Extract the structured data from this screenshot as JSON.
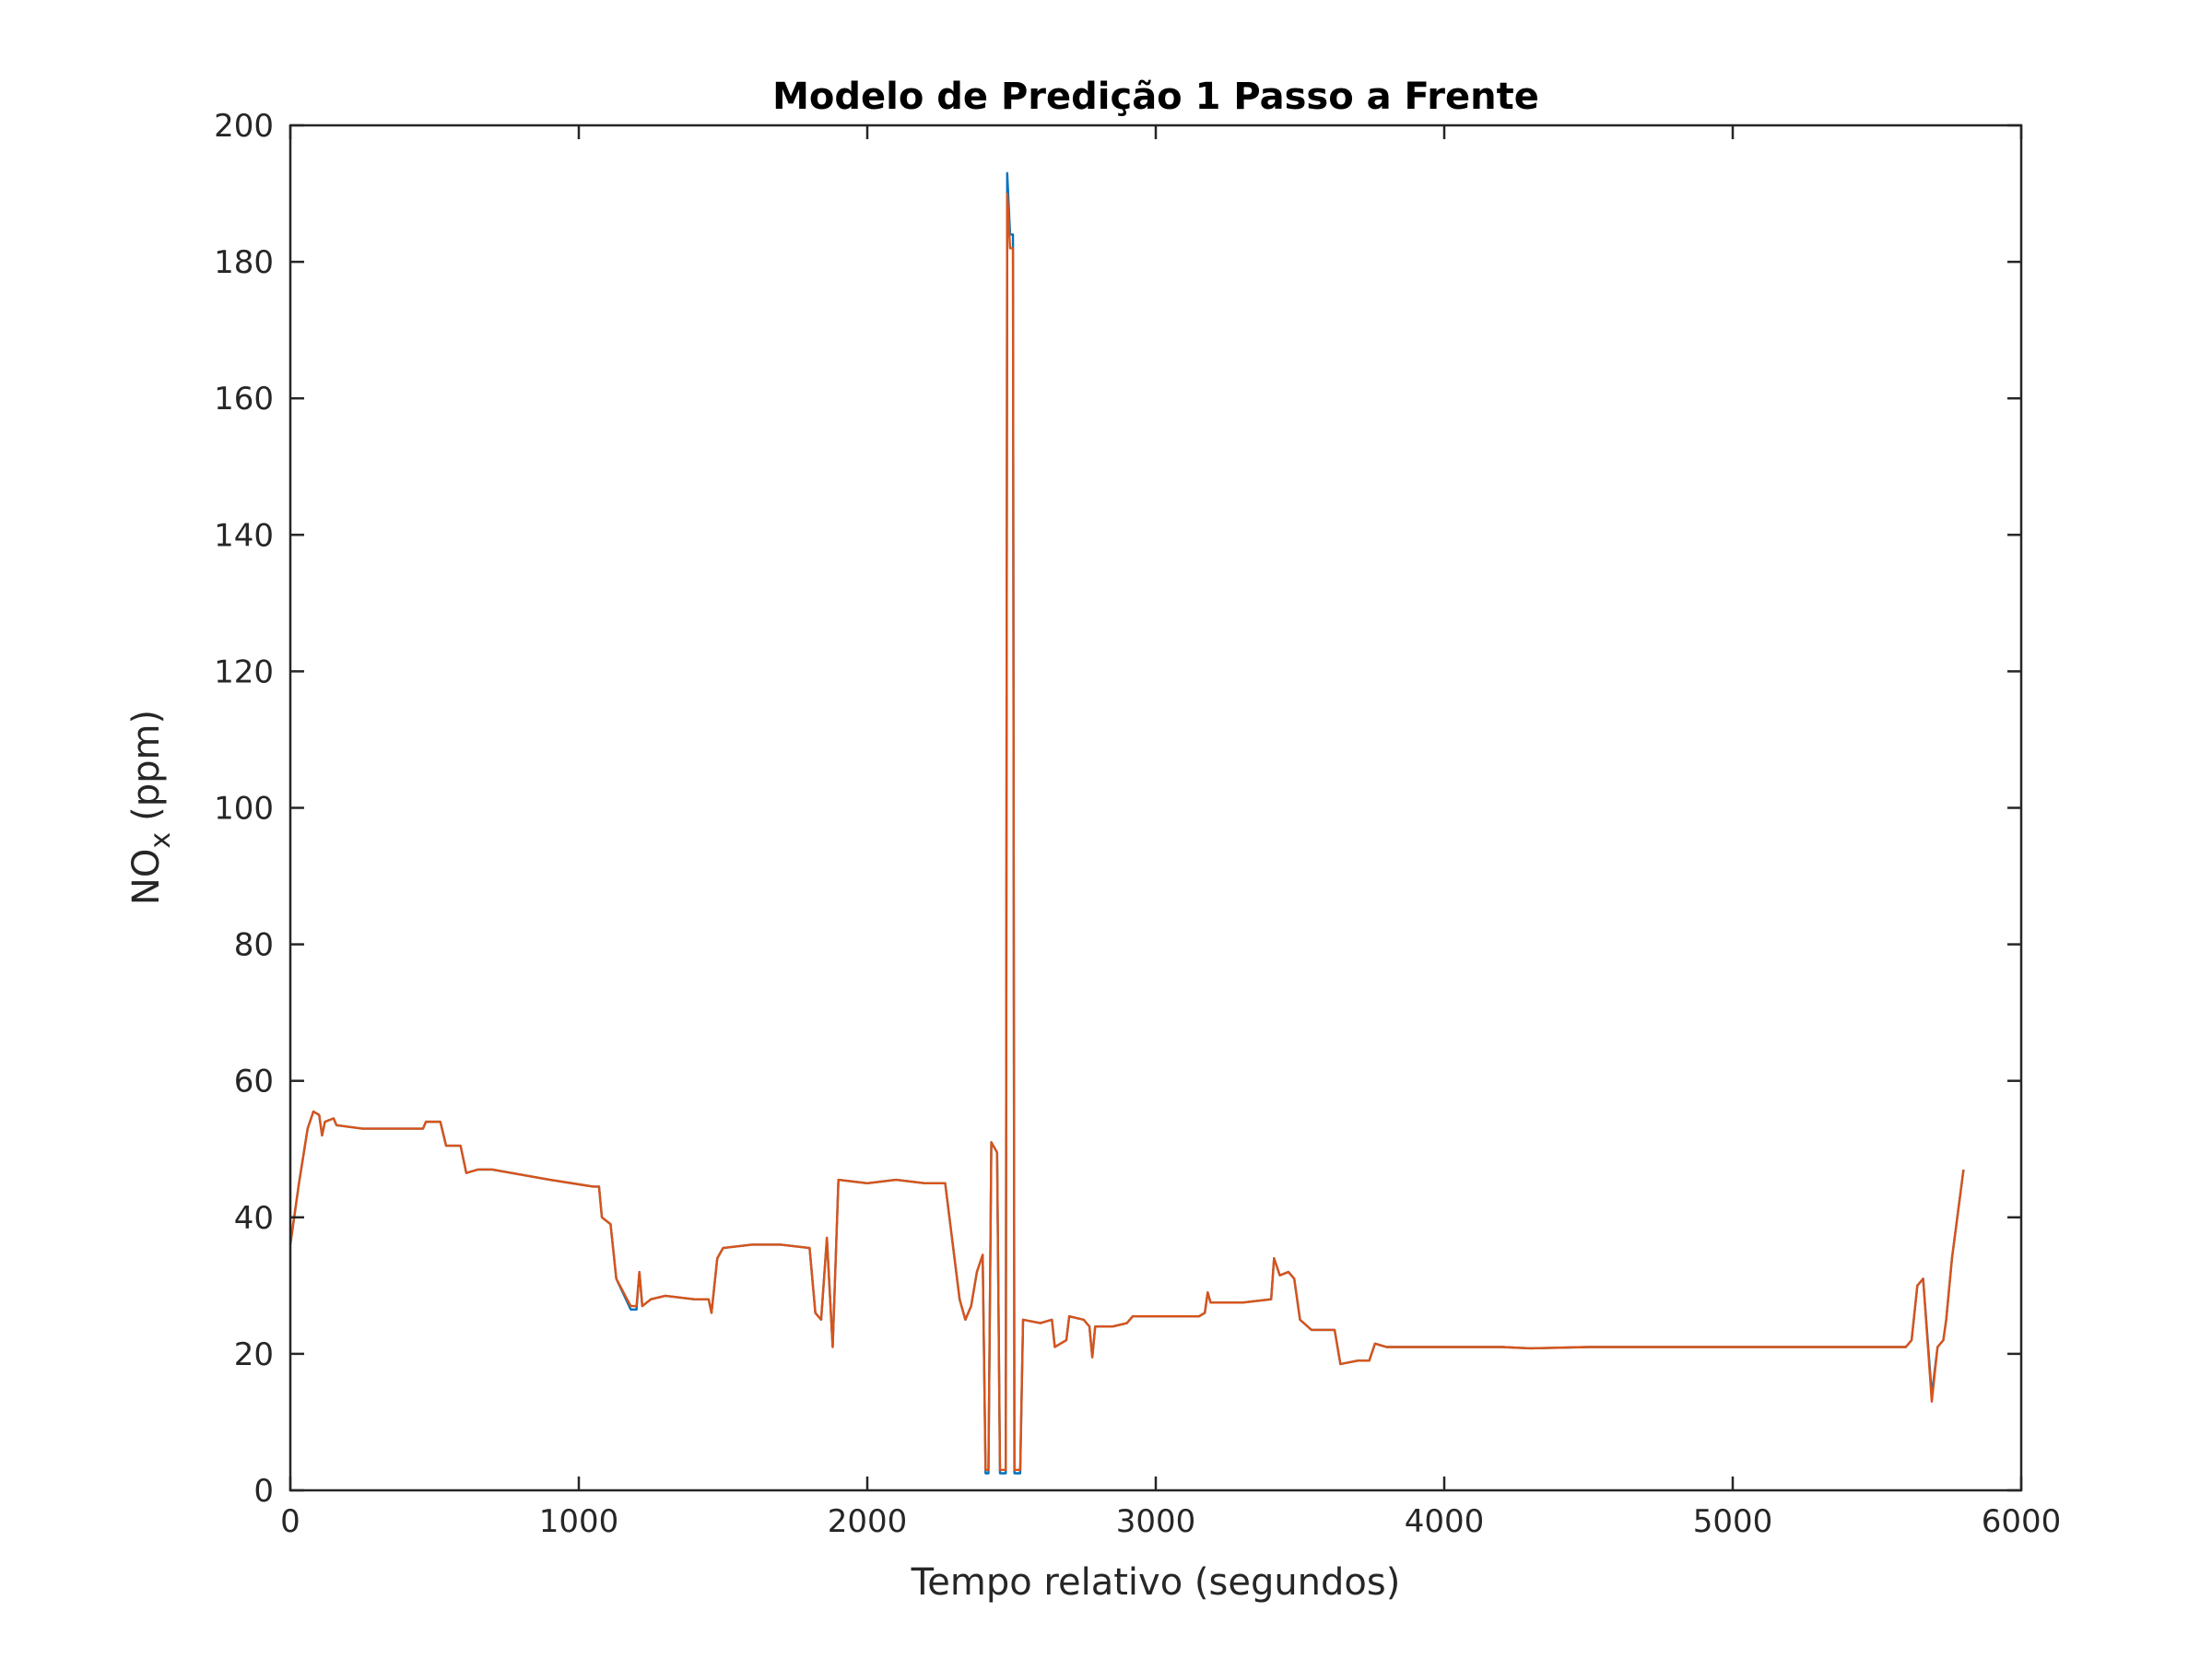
{
  "chart_data": {
    "type": "line",
    "title": "Modelo de Predição 1 Passo a Frente",
    "xlabel": "Tempo relativo (segundos)",
    "ylabel": {
      "main": "NO",
      "sub": "x",
      "unit": "(ppm)"
    },
    "xlim": [
      0,
      6000
    ],
    "xticks": [
      0,
      1000,
      2000,
      3000,
      4000,
      5000,
      6000
    ],
    "ylim": [
      0,
      200
    ],
    "yticks": [
      0,
      20,
      40,
      60,
      80,
      100,
      120,
      140,
      160,
      180,
      200
    ],
    "grid": false,
    "x": [
      0,
      30,
      60,
      80,
      100,
      110,
      120,
      150,
      160,
      250,
      400,
      460,
      470,
      520,
      540,
      590,
      610,
      650,
      700,
      900,
      1050,
      1070,
      1080,
      1110,
      1130,
      1180,
      1200,
      1210,
      1220,
      1250,
      1300,
      1400,
      1450,
      1460,
      1480,
      1500,
      1600,
      1700,
      1800,
      1820,
      1840,
      1860,
      1880,
      1900,
      2000,
      2100,
      2200,
      2270,
      2320,
      2340,
      2360,
      2380,
      2400,
      2410,
      2420,
      2430,
      2450,
      2460,
      2480,
      2485,
      2495,
      2505,
      2510,
      2530,
      2540,
      2600,
      2640,
      2650,
      2690,
      2700,
      2750,
      2770,
      2780,
      2790,
      2850,
      2900,
      2920,
      3000,
      3150,
      3170,
      3180,
      3190,
      3300,
      3400,
      3410,
      3430,
      3460,
      3480,
      3500,
      3540,
      3600,
      3620,
      3640,
      3700,
      3740,
      3760,
      3800,
      4000,
      4200,
      4300,
      4500,
      4800,
      5000,
      5200,
      5400,
      5600,
      5620,
      5640,
      5660,
      5690,
      5710,
      5730,
      5740,
      5760,
      5800
    ],
    "series": [
      {
        "color": "#0072bd",
        "values": [
          36,
          45,
          53,
          55.5,
          55,
          52,
          54,
          54.5,
          53.5,
          53,
          53,
          53,
          54,
          54,
          50.5,
          50.5,
          46.5,
          47,
          47,
          45.5,
          44.5,
          44.5,
          40,
          39,
          31,
          26.5,
          26.5,
          32,
          27,
          28,
          28.5,
          28,
          28,
          26,
          34,
          35.5,
          36,
          36,
          35.5,
          26,
          25,
          37,
          21,
          45.5,
          45,
          45.5,
          45,
          45,
          28,
          25,
          27,
          32,
          34.5,
          2.5,
          2.5,
          51,
          49.5,
          2.5,
          2.5,
          193,
          184,
          184,
          2.5,
          2.5,
          25,
          24.5,
          25,
          21,
          22,
          25.5,
          25,
          24,
          19.5,
          24,
          24,
          24.5,
          25.5,
          25.5,
          25.5,
          26,
          29,
          27.5,
          27.5,
          28,
          34,
          31.5,
          32,
          31,
          25,
          23.5,
          23.5,
          23.5,
          18.5,
          19,
          19,
          21.5,
          21,
          21,
          21,
          20.8,
          21,
          21,
          21,
          21,
          21,
          21,
          22,
          30,
          31,
          14,
          21,
          22,
          25,
          34,
          47
        ]
      },
      {
        "color": "#d95319",
        "values": [
          36,
          45,
          53,
          55.5,
          55,
          52,
          54,
          54.5,
          53.5,
          53,
          53,
          53,
          54,
          54,
          50.5,
          50.5,
          46.5,
          47,
          47,
          45.5,
          44.5,
          44.5,
          40,
          39,
          31,
          27,
          27,
          32,
          27,
          28,
          28.5,
          28,
          28,
          26,
          34,
          35.5,
          36,
          36,
          35.5,
          26,
          25,
          37,
          21,
          45.5,
          45,
          45.5,
          45,
          45,
          28,
          25,
          27,
          32,
          34.5,
          3,
          3,
          51,
          49.5,
          3,
          3,
          190,
          182,
          182,
          3,
          3,
          25,
          24.5,
          25,
          21,
          22,
          25.5,
          25,
          24,
          19.5,
          24,
          24,
          24.5,
          25.5,
          25.5,
          25.5,
          26,
          29,
          27.5,
          27.5,
          28,
          34,
          31.5,
          32,
          31,
          25,
          23.5,
          23.5,
          23.5,
          18.5,
          19,
          19,
          21.5,
          21,
          21,
          21,
          20.8,
          21,
          21,
          21,
          21,
          21,
          21,
          22,
          30,
          31,
          13,
          21,
          22,
          25,
          34,
          47
        ]
      }
    ]
  }
}
